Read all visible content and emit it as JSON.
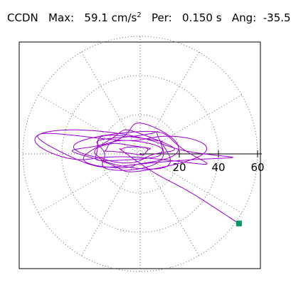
{
  "header": {
    "station": "CCDN",
    "max_label": "Max:",
    "max_value": "59.1 cm/s",
    "max_exp": "2",
    "per_label": "Per:",
    "per_value": "0.150 s",
    "ang_label": "Ang:",
    "ang_value": "-35.5"
  },
  "chart_data": {
    "type": "polar-orbit",
    "radial_ticks": [
      20,
      40,
      60
    ],
    "r_max": 60,
    "grid": true,
    "angular_grid_deg": 30,
    "colors": {
      "trace": "#9900cc",
      "end_marker": "#009966",
      "grid": "#666666",
      "axis": "#000000"
    },
    "end_point": {
      "x": 50.5,
      "y": -35.5
    },
    "orbit_samples": 1400
  }
}
